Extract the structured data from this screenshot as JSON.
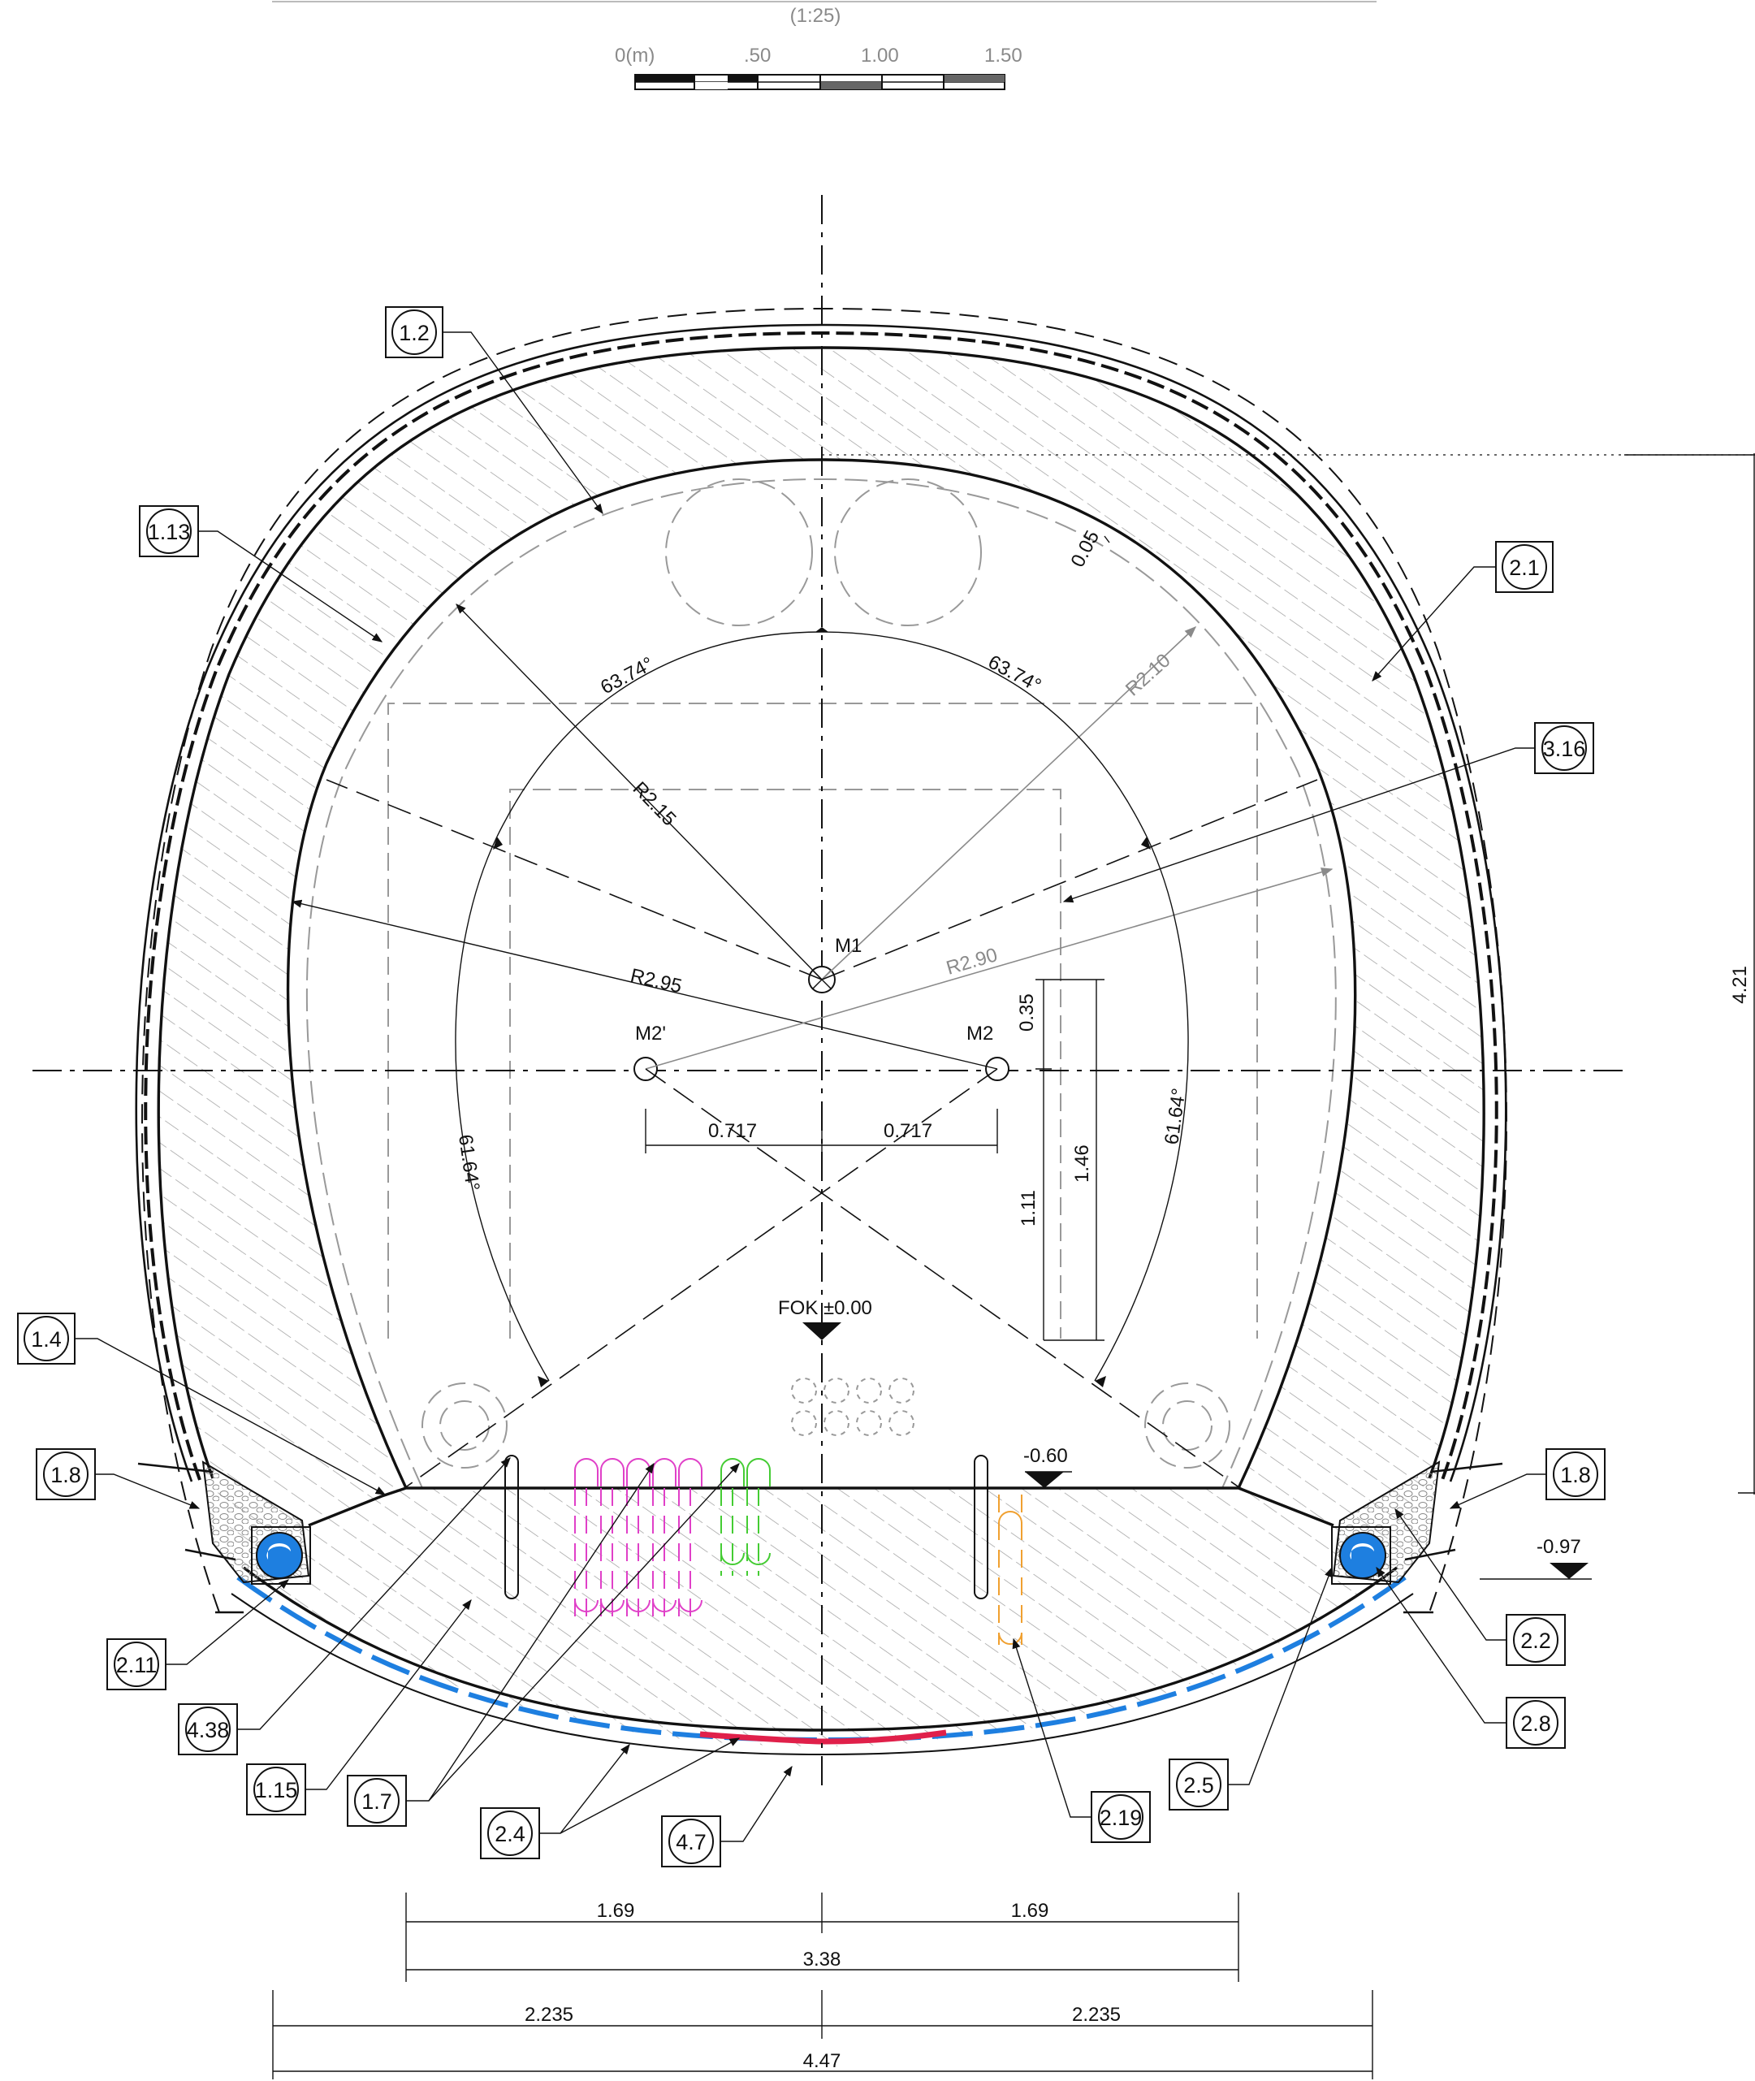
{
  "scale": {
    "ratio": "(1:25)",
    "labels": [
      "0(m)",
      ".50",
      "1.00",
      "1.50"
    ]
  },
  "dimensions": {
    "height_total": "4.21",
    "gap_005": "0.05",
    "angle_top_left": "63.74°",
    "angle_top_right": "63.74°",
    "angle_side_left": "61.64°",
    "angle_side_right": "61.64°",
    "r_215": "R2.15",
    "r_210": "R2.10",
    "r_295": "R2.95",
    "r_290": "R2.90",
    "center_m1": "M1",
    "center_m2": "M2",
    "center_m2p": "M2'",
    "offset_left": "0.717",
    "offset_right": "0.717",
    "v_035": "0.35",
    "v_146": "1.46",
    "v_111": "1.11",
    "level_fok": "FOK ±0.00",
    "level_060": "-0.60",
    "level_097": "-0.97",
    "bottom_half_left": "1.69",
    "bottom_half_right": "1.69",
    "bottom_inner": "3.38",
    "bottom_outer_left": "2.235",
    "bottom_outer_right": "2.235",
    "bottom_outer": "4.47"
  },
  "tags": {
    "t1_2": "1.2",
    "t1_13": "1.13",
    "t2_1": "2.1",
    "t3_16": "3.16",
    "t1_4": "1.4",
    "t1_8_left": "1.8",
    "t1_8_right": "1.8",
    "t2_11": "2.11",
    "t4_38": "4.38",
    "t1_15": "1.15",
    "t1_7": "1.7",
    "t2_4": "2.4",
    "t4_7": "4.7",
    "t2_19": "2.19",
    "t2_5": "2.5",
    "t2_2": "2.2",
    "t2_8": "2.8"
  },
  "colors": {
    "blue": "#1e7fe0",
    "red": "#e0204a",
    "magenta": "#e040c8",
    "green": "#44cc33",
    "orange": "#f0a030",
    "hatch": "#9a9a9a"
  }
}
